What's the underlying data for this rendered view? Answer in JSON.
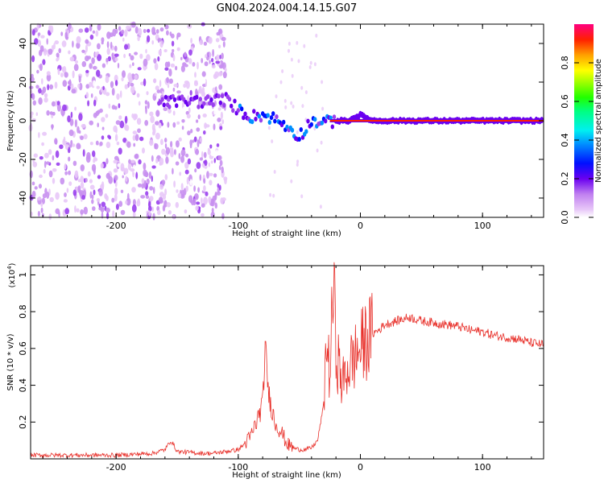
{
  "title": "GN04.2024.004.14.15.G07",
  "colors": {
    "snr_line": "#e8302a",
    "spectral_palette": [
      "#ffffff",
      "#e8c8f8",
      "#c890f0",
      "#9a40ee",
      "#6a00f0",
      "#0010ff",
      "#0090ff",
      "#00f0f0",
      "#00ff80",
      "#20ff00",
      "#a0ff00",
      "#ffff00",
      "#ffa000",
      "#ff2000",
      "#ff0080"
    ]
  },
  "chart_data": [
    {
      "type": "heatmap",
      "xlabel": "Height of straight line (km)",
      "ylabel": "Frequency (Hz)",
      "xlim": [
        -270,
        150
      ],
      "ylim": [
        -50,
        50
      ],
      "xticks": [
        -200,
        -100,
        0,
        100
      ],
      "yticks": [
        -40,
        -20,
        0,
        20,
        40
      ],
      "colorbar": {
        "label": "Normalized spectral amplitude",
        "range": [
          0,
          1
        ],
        "ticks": [
          0.0,
          0.2,
          0.4,
          0.6,
          0.8
        ]
      },
      "features": {
        "noise_region_x": [
          -270,
          -110
        ],
        "ridge_points": [
          {
            "x": -165,
            "f": 9
          },
          {
            "x": -155,
            "f": 10
          },
          {
            "x": -125,
            "f": 10
          },
          {
            "x": -110,
            "f": 11
          },
          {
            "x": -100,
            "f": 6
          },
          {
            "x": -90,
            "f": 2
          },
          {
            "x": -80,
            "f": 3
          },
          {
            "x": -70,
            "f": 1
          },
          {
            "x": -60,
            "f": -3
          },
          {
            "x": -50,
            "f": -8
          },
          {
            "x": -40,
            "f": 0
          },
          {
            "x": -30,
            "f": -1
          },
          {
            "x": -20,
            "f": 0
          },
          {
            "x": -10,
            "f": 0
          },
          {
            "x": 0,
            "f": 3
          },
          {
            "x": 10,
            "f": 0
          },
          {
            "x": 150,
            "f": 0
          }
        ],
        "strong_line": {
          "x_start": -25,
          "x_end": 150,
          "f": 0,
          "amplitude": 0.95
        }
      }
    },
    {
      "type": "line",
      "xlabel": "Height of straight line (km)",
      "ylabel": "SNR (10 * v/v)",
      "y_multiplier": "(x10⁴)",
      "y_multiplier_base": "(x10",
      "y_multiplier_exp": "4",
      "y_multiplier_close": ")",
      "xlim": [
        -270,
        150
      ],
      "ylim": [
        0,
        1.05
      ],
      "xticks": [
        -200,
        -100,
        0,
        100
      ],
      "yticks": [
        0.2,
        0.4,
        0.6,
        0.8,
        1.0
      ],
      "series": [
        {
          "x": [
            -270,
            -250,
            -200,
            -170,
            -160,
            -155,
            -150,
            -130,
            -120,
            -110,
            -100,
            -95,
            -90,
            -85,
            -80,
            -78,
            -75,
            -70,
            -65,
            -60,
            -55,
            -50,
            -45,
            -40,
            -35,
            -30,
            -28,
            -25,
            -22,
            -20,
            -15,
            -10,
            -5,
            0,
            5,
            10,
            15,
            20,
            30,
            40,
            50,
            60,
            70,
            80,
            90,
            100,
            110,
            120,
            130,
            140,
            150
          ],
          "values": [
            0.02,
            0.02,
            0.02,
            0.03,
            0.05,
            0.1,
            0.04,
            0.03,
            0.03,
            0.04,
            0.05,
            0.08,
            0.12,
            0.2,
            0.3,
            0.6,
            0.35,
            0.2,
            0.15,
            0.08,
            0.06,
            0.05,
            0.05,
            0.06,
            0.1,
            0.3,
            0.65,
            0.45,
            0.95,
            0.6,
            0.4,
            0.5,
            0.55,
            0.6,
            0.65,
            0.68,
            0.7,
            0.73,
            0.75,
            0.77,
            0.75,
            0.74,
            0.73,
            0.72,
            0.7,
            0.69,
            0.67,
            0.66,
            0.65,
            0.63,
            0.62
          ]
        }
      ]
    }
  ]
}
